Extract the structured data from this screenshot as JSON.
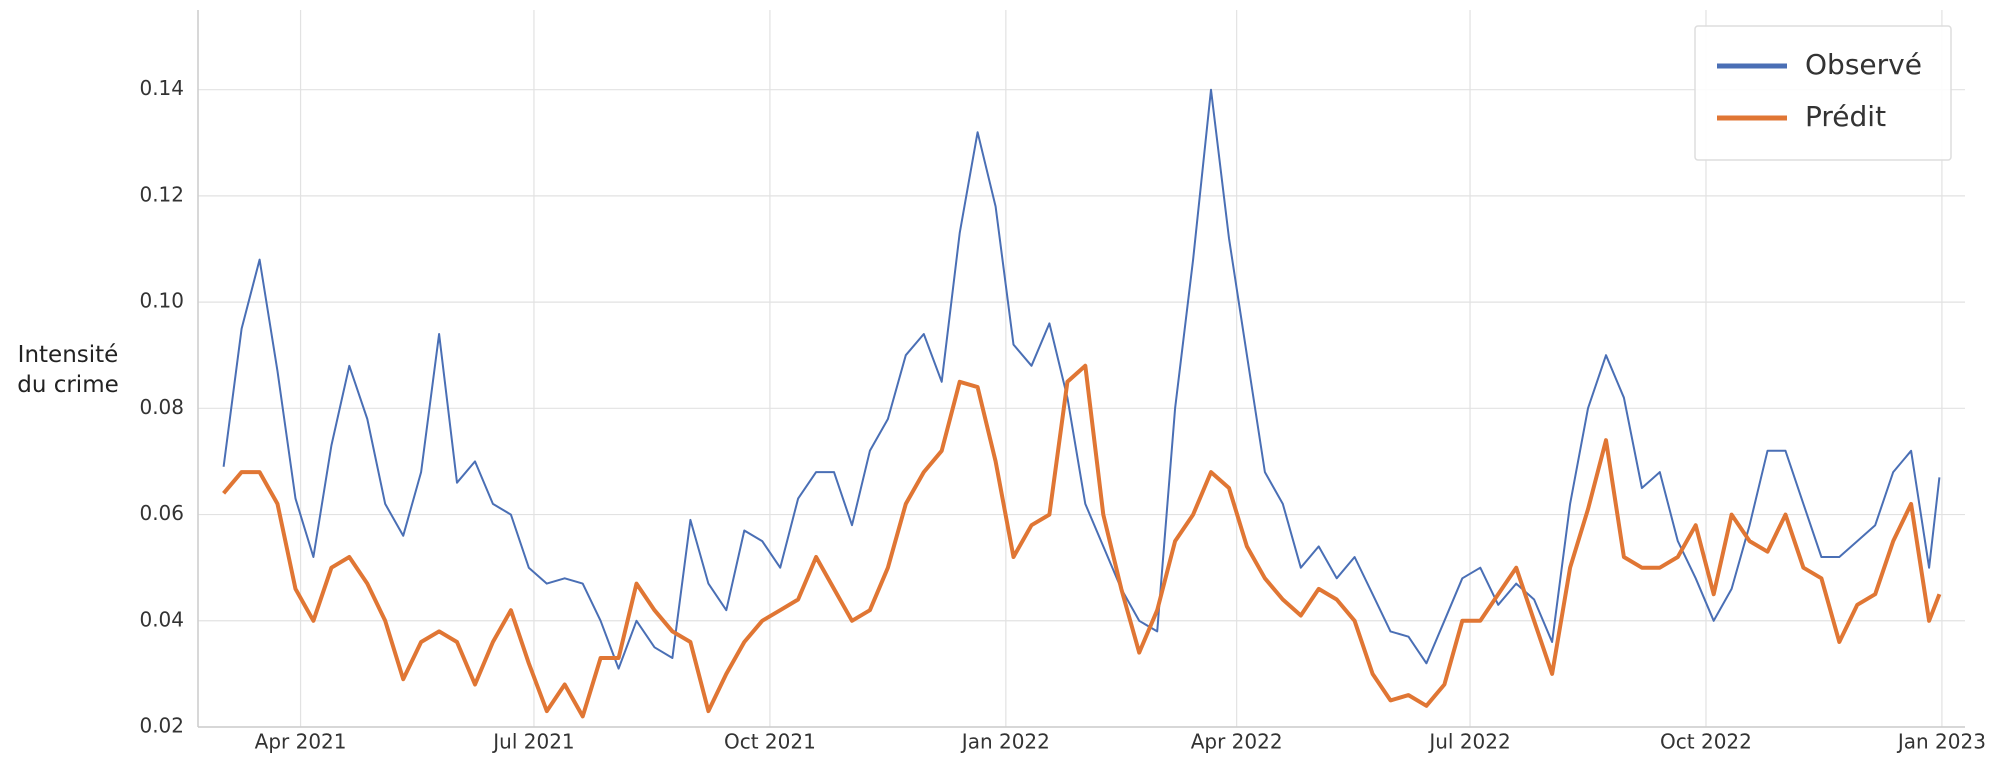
{
  "chart_data": {
    "type": "line",
    "ylabel": "Intensité du crime",
    "x": [
      18688,
      18695,
      18702,
      18709,
      18716,
      18723,
      18730,
      18737,
      18744,
      18751,
      18758,
      18765,
      18772,
      18779,
      18786,
      18793,
      18800,
      18807,
      18814,
      18821,
      18828,
      18835,
      18842,
      18849,
      18856,
      18863,
      18870,
      18877,
      18884,
      18891,
      18898,
      18905,
      18912,
      18919,
      18926,
      18933,
      18940,
      18947,
      18954,
      18961,
      18968,
      18975,
      18982,
      18989,
      18996,
      19003,
      19010,
      19017,
      19024,
      19031,
      19038,
      19045,
      19052,
      19059,
      19066,
      19073,
      19080,
      19087,
      19094,
      19101,
      19108,
      19115,
      19122,
      19129,
      19136,
      19143,
      19150,
      19157,
      19164,
      19171,
      19178,
      19185,
      19192,
      19199,
      19206,
      19213,
      19220,
      19227,
      19234,
      19241,
      19248,
      19255,
      19262,
      19269,
      19276,
      19283,
      19290,
      19297,
      19304,
      19311,
      19318,
      19325,
      19332,
      19339,
      19346,
      19353,
      19357
    ],
    "series": [
      {
        "name": "Observé",
        "color": "#4a6fb5",
        "width": 2,
        "values": [
          0.069,
          0.095,
          0.108,
          0.087,
          0.063,
          0.052,
          0.073,
          0.088,
          0.078,
          0.062,
          0.056,
          0.068,
          0.094,
          0.066,
          0.07,
          0.062,
          0.06,
          0.05,
          0.047,
          0.048,
          0.047,
          0.04,
          0.031,
          0.04,
          0.035,
          0.033,
          0.059,
          0.047,
          0.042,
          0.057,
          0.055,
          0.05,
          0.063,
          0.068,
          0.068,
          0.058,
          0.072,
          0.078,
          0.09,
          0.094,
          0.085,
          0.113,
          0.132,
          0.118,
          0.092,
          0.088,
          0.096,
          0.082,
          0.062,
          0.054,
          0.046,
          0.04,
          0.038,
          0.08,
          0.108,
          0.14,
          0.112,
          0.09,
          0.068,
          0.062,
          0.05,
          0.054,
          0.048,
          0.052,
          0.045,
          0.038,
          0.037,
          0.032,
          0.04,
          0.048,
          0.05,
          0.043,
          0.047,
          0.044,
          0.036,
          0.062,
          0.08,
          0.09,
          0.082,
          0.065,
          0.068,
          0.055,
          0.048,
          0.04,
          0.046,
          0.058,
          0.072,
          0.072,
          0.062,
          0.052,
          0.052,
          0.055,
          0.058,
          0.068,
          0.072,
          0.05,
          0.067
        ]
      },
      {
        "name": "Prédit",
        "color": "#e07634",
        "width": 4,
        "values": [
          0.064,
          0.068,
          0.068,
          0.062,
          0.046,
          0.04,
          0.05,
          0.052,
          0.047,
          0.04,
          0.029,
          0.036,
          0.038,
          0.036,
          0.028,
          0.036,
          0.042,
          0.032,
          0.023,
          0.028,
          0.022,
          0.033,
          0.033,
          0.047,
          0.042,
          0.038,
          0.036,
          0.023,
          0.03,
          0.036,
          0.04,
          0.042,
          0.044,
          0.052,
          0.046,
          0.04,
          0.042,
          0.05,
          0.062,
          0.068,
          0.072,
          0.085,
          0.084,
          0.07,
          0.052,
          0.058,
          0.06,
          0.085,
          0.088,
          0.06,
          0.046,
          0.034,
          0.042,
          0.055,
          0.06,
          0.068,
          0.065,
          0.054,
          0.048,
          0.044,
          0.041,
          0.046,
          0.044,
          0.04,
          0.03,
          0.025,
          0.026,
          0.024,
          0.028,
          0.04,
          0.04,
          0.045,
          0.05,
          0.04,
          0.03,
          0.05,
          0.061,
          0.074,
          0.052,
          0.05,
          0.05,
          0.052,
          0.058,
          0.045,
          0.06,
          0.055,
          0.053,
          0.06,
          0.05,
          0.048,
          0.036,
          0.043,
          0.045,
          0.055,
          0.062,
          0.04,
          0.045
        ]
      }
    ],
    "xlim": [
      18678,
      19367
    ],
    "xticks": [
      {
        "value": 18718,
        "label": "Apr 2021"
      },
      {
        "value": 18809,
        "label": "Jul 2021"
      },
      {
        "value": 18901,
        "label": "Oct 2021"
      },
      {
        "value": 18993,
        "label": "Jan 2022"
      },
      {
        "value": 19083,
        "label": "Apr 2022"
      },
      {
        "value": 19174,
        "label": "Jul 2022"
      },
      {
        "value": 19266,
        "label": "Oct 2022"
      },
      {
        "value": 19358,
        "label": "Jan 2023"
      }
    ],
    "ylim": [
      0.02,
      0.155
    ],
    "yticks": [
      0.02,
      0.04,
      0.06,
      0.08,
      {
        "value": 0.1,
        "label": "0.10"
      },
      0.12,
      0.14
    ],
    "grid": true,
    "legend": "upper right"
  }
}
